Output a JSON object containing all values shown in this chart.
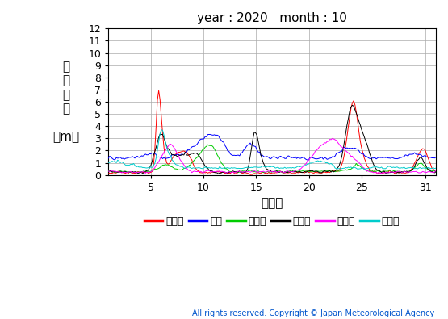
{
  "title": "year : 2020   month : 10",
  "xlabel": "（日）",
  "ylabel_chars": [
    "有",
    "義",
    "波",
    "高",
    "",
    "（m）"
  ],
  "ylim": [
    0,
    12
  ],
  "xlim": [
    1,
    32
  ],
  "yticks": [
    0,
    1,
    2,
    3,
    4,
    5,
    6,
    7,
    8,
    9,
    10,
    11,
    12
  ],
  "xticks": [
    5,
    10,
    15,
    20,
    25,
    31
  ],
  "copyright": "All rights reserved. Copyright © Japan Meteorological Agency",
  "legend_labels": [
    "上ノ国",
    "唐桜",
    "石廠崎",
    "経ヶ尬",
    "生月島",
    "屋久島"
  ],
  "legend_colors": [
    "#ff0000",
    "#0000ff",
    "#00cc00",
    "#000000",
    "#ff00ff",
    "#00cccc"
  ],
  "background_color": "#ffffff",
  "grid_color": "#aaaaaa",
  "title_fontsize": 11,
  "tick_fontsize": 9,
  "legend_fontsize": 9,
  "copyright_fontsize": 7
}
